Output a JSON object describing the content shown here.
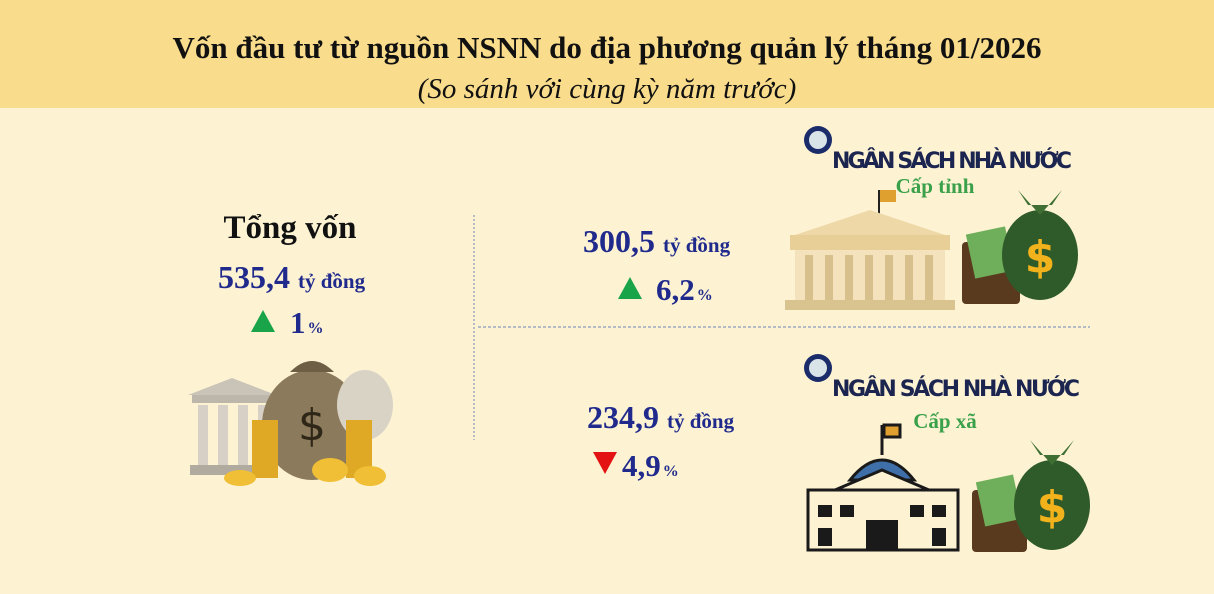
{
  "header": {
    "title": "Vốn đầu tư từ nguồn NSNN do địa phương quản lý tháng 01/2026",
    "subtitle": "(So sánh với cùng kỳ năm trước)"
  },
  "total": {
    "label": "Tổng vốn",
    "value": "535,4",
    "unit": "tỷ đồng",
    "change": "1",
    "change_unit": "%",
    "direction": "up"
  },
  "levels": [
    {
      "heading": "NGÂN SÁCH NHÀ NƯỚC",
      "label": "Cấp tỉnh",
      "value": "300,5",
      "unit": "tỷ đồng",
      "change": "6,2",
      "change_unit": "%",
      "direction": "up"
    },
    {
      "heading": "NGÂN SÁCH NHÀ NƯỚC",
      "label": "Cấp xã",
      "value": "234,9",
      "unit": "tỷ đồng",
      "change": "4,9",
      "change_unit": "%",
      "direction": "down"
    }
  ]
}
